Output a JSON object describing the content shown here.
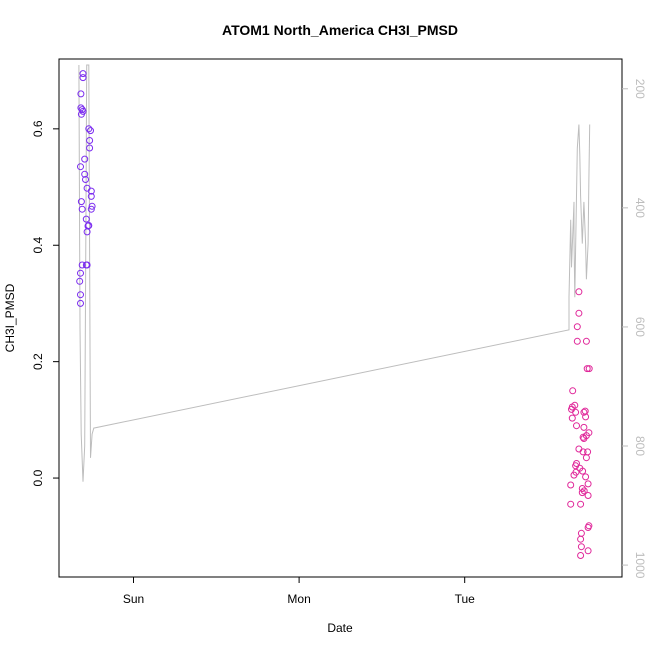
{
  "chart_data": {
    "type": "scatter",
    "title": "ATOM1 North_America CH3I_PMSD",
    "xlabel": "Date",
    "ylabel": "CH3I_PMSD",
    "x_ticks": [
      "Sun",
      "Mon",
      "Tue"
    ],
    "y_ticks": [
      "0.0",
      "0.2",
      "0.4",
      "0.6"
    ],
    "y2_ticks": [
      "200",
      "400",
      "600",
      "800",
      "1000"
    ],
    "xlim_days": [
      -0.45,
      2.95
    ],
    "ylim": [
      -0.17,
      0.72
    ],
    "y2lim": [
      1020,
      150
    ],
    "y2_reversed": true,
    "grid": false,
    "colors": {
      "early_points": "#7b2cf0",
      "late_points": "#e0289a",
      "profile_line": "#bdbdbd",
      "axis": "#000000",
      "secondary_axis": "#bdbdbd"
    },
    "series": [
      {
        "marker": "open-circle",
        "color": "#7b2cf0",
        "points": [
          [
            -0.32,
            0.3
          ],
          [
            -0.32,
            0.315
          ],
          [
            -0.325,
            0.338
          ],
          [
            -0.32,
            0.352
          ],
          [
            -0.31,
            0.366
          ],
          [
            -0.285,
            0.366
          ],
          [
            -0.28,
            0.366
          ],
          [
            -0.28,
            0.423
          ],
          [
            -0.275,
            0.433
          ],
          [
            -0.27,
            0.434
          ],
          [
            -0.285,
            0.445
          ],
          [
            -0.31,
            0.462
          ],
          [
            -0.255,
            0.462
          ],
          [
            -0.25,
            0.467
          ],
          [
            -0.315,
            0.475
          ],
          [
            -0.255,
            0.484
          ],
          [
            -0.255,
            0.493
          ],
          [
            -0.28,
            0.498
          ],
          [
            -0.29,
            0.513
          ],
          [
            -0.295,
            0.522
          ],
          [
            -0.32,
            0.535
          ],
          [
            -0.295,
            0.548
          ],
          [
            -0.265,
            0.567
          ],
          [
            -0.265,
            0.58
          ],
          [
            -0.26,
            0.597
          ],
          [
            -0.27,
            0.6
          ],
          [
            -0.315,
            0.625
          ],
          [
            -0.31,
            0.633
          ],
          [
            -0.305,
            0.63
          ],
          [
            -0.318,
            0.636
          ],
          [
            -0.318,
            0.66
          ],
          [
            -0.305,
            0.688
          ],
          [
            -0.305,
            0.695
          ]
        ]
      },
      {
        "marker": "open-circle",
        "color": "#e0289a",
        "points": [
          [
            2.64,
            -0.045
          ],
          [
            2.64,
            -0.012
          ],
          [
            2.65,
            0.103
          ],
          [
            2.645,
            0.118
          ],
          [
            2.65,
            0.122
          ],
          [
            2.652,
            0.15
          ],
          [
            2.66,
            0.005
          ],
          [
            2.665,
            0.125
          ],
          [
            2.67,
            0.113
          ],
          [
            2.67,
            0.021
          ],
          [
            2.672,
            0.01
          ],
          [
            2.675,
            0.025
          ],
          [
            2.675,
            0.09
          ],
          [
            2.68,
            0.26
          ],
          [
            2.68,
            0.235
          ],
          [
            2.69,
            0.283
          ],
          [
            2.69,
            0.32
          ],
          [
            2.69,
            0.05
          ],
          [
            2.695,
            0.017
          ],
          [
            2.7,
            -0.045
          ],
          [
            2.7,
            -0.105
          ],
          [
            2.7,
            -0.133
          ],
          [
            2.705,
            -0.118
          ],
          [
            2.705,
            -0.095
          ],
          [
            2.71,
            -0.025
          ],
          [
            2.71,
            -0.018
          ],
          [
            2.712,
            0.012
          ],
          [
            2.715,
            0.045
          ],
          [
            2.715,
            0.07
          ],
          [
            2.72,
            0.113
          ],
          [
            2.72,
            0.087
          ],
          [
            2.72,
            0.068
          ],
          [
            2.722,
            -0.022
          ],
          [
            2.728,
            0.115
          ],
          [
            2.73,
            0.105
          ],
          [
            2.73,
            0.002
          ],
          [
            2.735,
            0.235
          ],
          [
            2.735,
            0.073
          ],
          [
            2.735,
            0.035
          ],
          [
            2.74,
            0.188
          ],
          [
            2.742,
            0.045
          ],
          [
            2.745,
            -0.01
          ],
          [
            2.745,
            -0.03
          ],
          [
            2.745,
            -0.085
          ],
          [
            2.745,
            -0.125
          ],
          [
            2.75,
            0.078
          ],
          [
            2.75,
            -0.082
          ],
          [
            2.752,
            0.188
          ]
        ]
      }
    ],
    "profile_line": {
      "axis": "secondary",
      "color": "#bdbdbd",
      "points": [
        [
          -0.33,
          160
        ],
        [
          -0.323,
          600
        ],
        [
          -0.316,
          780
        ],
        [
          -0.305,
          860
        ],
        [
          -0.295,
          800
        ],
        [
          -0.287,
          400
        ],
        [
          -0.283,
          160
        ],
        [
          -0.27,
          160
        ],
        [
          -0.26,
          820
        ],
        [
          -0.25,
          780
        ],
        [
          -0.24,
          770
        ],
        [
          2.63,
          605
        ],
        [
          2.63,
          550
        ],
        [
          2.64,
          420
        ],
        [
          2.645,
          500
        ],
        [
          2.66,
          390
        ],
        [
          2.66,
          450
        ],
        [
          2.665,
          550
        ],
        [
          2.68,
          300
        ],
        [
          2.69,
          260
        ],
        [
          2.695,
          310
        ],
        [
          2.7,
          380
        ],
        [
          2.71,
          460
        ],
        [
          2.72,
          390
        ],
        [
          2.73,
          460
        ],
        [
          2.735,
          520
        ],
        [
          2.745,
          460
        ],
        [
          2.75,
          350
        ],
        [
          2.755,
          260
        ]
      ]
    }
  }
}
